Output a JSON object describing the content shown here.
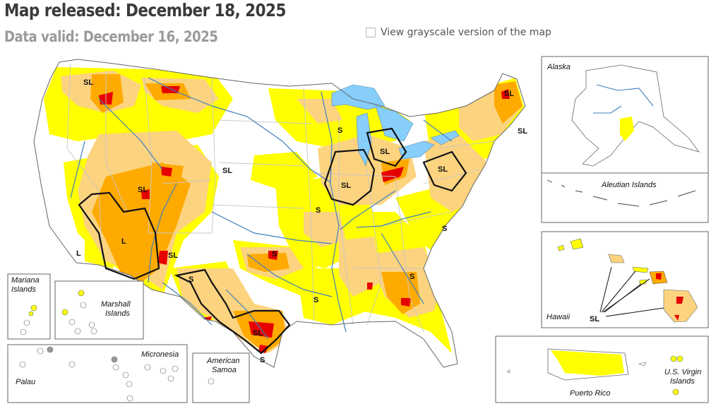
{
  "header": {
    "map_released": "Map released: December 18, 2025",
    "data_valid": "Data valid: December 16, 2025"
  },
  "controls": {
    "grayscale_label": "View grayscale version of the map",
    "grayscale_checked": false
  },
  "impact_labels": {
    "sl": "SL",
    "s": "S",
    "l": "L"
  },
  "insets": {
    "alaska": "Alaska",
    "aleutian": "Aleutian Islands",
    "hawaii": "Hawaii",
    "puerto_rico": "Puerto Rico",
    "usvi_line1": "U.S. Virgin",
    "usvi_line2": "Islands",
    "mariana_line1": "Mariana",
    "mariana_line2": "Islands",
    "marshall_line1": "Marshall",
    "marshall_line2": "Islands",
    "palau": "Palau",
    "micronesia": "Micronesia",
    "samoa_line1": "American",
    "samoa_line2": "Samoa"
  },
  "colors": {
    "d0_abnormally_dry": "#ffff00",
    "d1_moderate": "#fcd37f",
    "d2_severe": "#ffaa00",
    "d3_extreme": "#e60000",
    "d4_exceptional": "#730000",
    "water": "#87cefa",
    "rivers": "#3f7fbf",
    "borders": "#c8c8c8",
    "outline": "#666666"
  }
}
